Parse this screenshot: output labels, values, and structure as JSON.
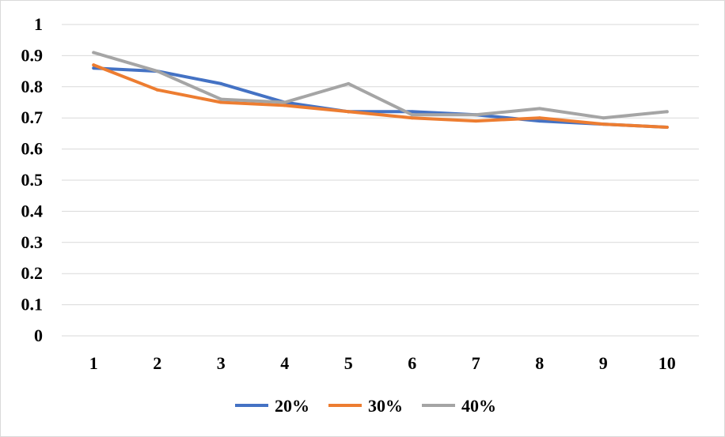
{
  "chart_data": {
    "type": "line",
    "title": "",
    "xlabel": "",
    "ylabel": "",
    "x": [
      "1",
      "2",
      "3",
      "4",
      "5",
      "6",
      "7",
      "8",
      "9",
      "10"
    ],
    "ylim": [
      0,
      1
    ],
    "yticks": [
      "0",
      "0.1",
      "0.2",
      "0.3",
      "0.4",
      "0.5",
      "0.6",
      "0.7",
      "0.8",
      "0.9",
      "1"
    ],
    "grid": true,
    "legend_position": "bottom",
    "series": [
      {
        "name": "20%",
        "color": "#4472c4",
        "values": [
          0.86,
          0.85,
          0.81,
          0.75,
          0.72,
          0.72,
          0.71,
          0.69,
          0.68,
          0.67
        ]
      },
      {
        "name": "30%",
        "color": "#ed7d31",
        "values": [
          0.87,
          0.79,
          0.75,
          0.74,
          0.72,
          0.7,
          0.69,
          0.7,
          0.68,
          0.67
        ]
      },
      {
        "name": "40%",
        "color": "#a5a5a5",
        "values": [
          0.91,
          0.85,
          0.76,
          0.75,
          0.81,
          0.71,
          0.71,
          0.73,
          0.7,
          0.72
        ]
      }
    ]
  }
}
